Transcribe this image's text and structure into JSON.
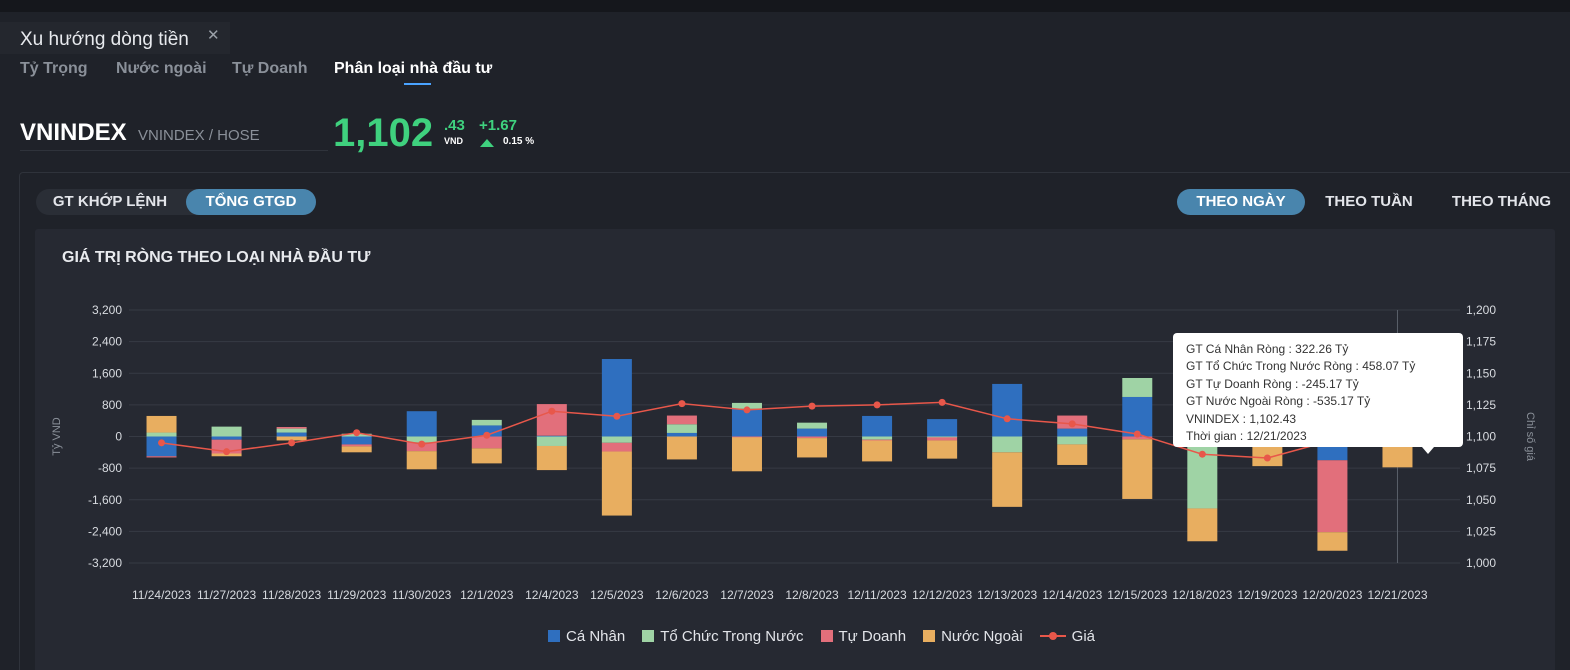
{
  "panel": {
    "title": "Xu hướng dòng tiền",
    "close_icon": "close-icon"
  },
  "subtabs": [
    {
      "label": "Tỷ Trọng",
      "active": false
    },
    {
      "label": "Nước ngoài",
      "active": false
    },
    {
      "label": "Tự Doanh",
      "active": false
    },
    {
      "label": "Phân loại nhà đầu tư",
      "active": true
    }
  ],
  "symbol": {
    "code": "VNINDEX",
    "exchange": "VNINDEX / HOSE",
    "price_int": "1,102",
    "price_dec": ".43",
    "unit": "VND",
    "change": "+1.67",
    "change_pct": "0.15 %",
    "trend_icon": "triangle-up-icon",
    "color": "#3fd17e"
  },
  "value_toggle": {
    "options": [
      "GT KHỚP LỆNH",
      "TỔNG GTGD"
    ],
    "selected": "TỔNG GTGD"
  },
  "period_toggle": {
    "options": [
      "THEO NGÀY",
      "THEO TUẦN",
      "THEO THÁNG"
    ],
    "selected": "THEO NGÀY"
  },
  "chart_title": "GIÁ TRỊ RÒNG THEO LOẠI NHÀ ĐẦU TƯ",
  "tooltip": {
    "lines": [
      "GT Cá Nhân Ròng  : 322.26 Tỷ",
      "GT Tổ Chức Trong Nước Ròng : 458.07 Tỷ",
      "GT Tự Doanh Ròng : -245.17 Tỷ",
      "GT Nước Ngoài Ròng : -535.17 Tỷ",
      "VNINDEX : 1,102.43",
      "Thời gian : 12/21/2023"
    ]
  },
  "chart_data": {
    "type": "bar",
    "stacked": true,
    "categories": [
      "11/24/2023",
      "11/27/2023",
      "11/28/2023",
      "11/29/2023",
      "11/30/2023",
      "12/1/2023",
      "12/4/2023",
      "12/5/2023",
      "12/6/2023",
      "12/7/2023",
      "12/8/2023",
      "12/11/2023",
      "12/12/2023",
      "12/13/2023",
      "12/14/2023",
      "12/15/2023",
      "12/18/2023",
      "12/19/2023",
      "12/20/2023",
      "12/21/2023"
    ],
    "y_left": {
      "label": "Tỷ VND",
      "ticks": [
        "3,200",
        "2,400",
        "1,600",
        "800",
        "0",
        "-800",
        "-1,600",
        "-2,400",
        "-3,200"
      ],
      "lim": [
        -3200,
        3200
      ]
    },
    "y_right": {
      "label": "Chỉ số giá",
      "ticks": [
        "1,200",
        "1,175",
        "1,150",
        "1,125",
        "1,100",
        "1,075",
        "1,050",
        "1,025",
        "1,000"
      ],
      "lim": [
        1000,
        1200
      ]
    },
    "grid": true,
    "legend_position": "bottom",
    "series": [
      {
        "name": "Cá Nhân",
        "color": "#2f6fbf",
        "values": [
          -500,
          -80,
          100,
          -200,
          640,
          280,
          20,
          1960,
          90,
          700,
          200,
          520,
          440,
          1330,
          200,
          1000,
          -100,
          350,
          -600,
          322.26
        ]
      },
      {
        "name": "Tổ Chức Trong Nước",
        "color": "#9fd3a5",
        "values": [
          100,
          250,
          100,
          70,
          -150,
          140,
          -240,
          -160,
          220,
          150,
          150,
          -80,
          -20,
          -400,
          -200,
          480,
          -1720,
          -100,
          200,
          458.07
        ]
      },
      {
        "name": "Tự Doanh",
        "color": "#e26f7b",
        "values": [
          -30,
          -350,
          40,
          -50,
          -220,
          -300,
          800,
          -220,
          220,
          -20,
          -40,
          -20,
          -80,
          0,
          330,
          -70,
          0,
          -50,
          -1820,
          -245.17
        ]
      },
      {
        "name": "Nước Ngoài",
        "color": "#e8ae60",
        "values": [
          420,
          -70,
          -100,
          -150,
          -460,
          -380,
          -610,
          -1620,
          -580,
          -860,
          -490,
          -530,
          -460,
          -1380,
          -520,
          -1510,
          -830,
          -600,
          -470,
          -535.17
        ]
      }
    ],
    "line": {
      "name": "Giá",
      "color": "#e8574a",
      "axis": "right",
      "values": [
        1095,
        1088,
        1095,
        1103,
        1094,
        1101,
        1120,
        1116,
        1126,
        1121,
        1124,
        1125,
        1127,
        1114,
        1110,
        1102,
        1086,
        1083,
        1097,
        1102.43
      ]
    }
  }
}
